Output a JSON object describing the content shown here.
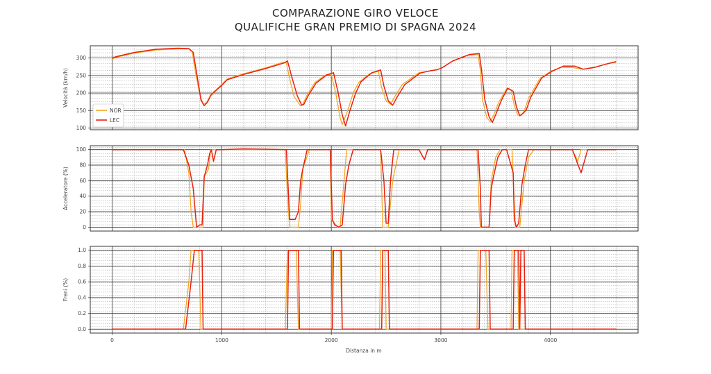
{
  "title_line1": "COMPARAZIONE GIRO VELOCE",
  "title_line2": "QUALIFICHE GRAN PREMIO DI SPAGNA 2024",
  "colors": {
    "NOR": "#f5a623",
    "LEC": "#e8200f"
  },
  "chart_data": [
    {
      "type": "line",
      "ylabel": "Velocità (km/h)",
      "xlabel": "",
      "xlim": [
        -200,
        4800
      ],
      "ylim": [
        95,
        335
      ],
      "yticks": [
        100,
        150,
        200,
        250,
        300
      ],
      "ytick_labels": [
        "100",
        "150",
        "200",
        "250",
        "300"
      ],
      "legend": {
        "location": "bottom-left",
        "entries": [
          "NOR",
          "LEC"
        ]
      },
      "series": [
        {
          "name": "NOR",
          "x": [
            0,
            50,
            200,
            400,
            600,
            700,
            730,
            760,
            800,
            830,
            860,
            900,
            950,
            1000,
            1050,
            1200,
            1400,
            1560,
            1590,
            1620,
            1660,
            1720,
            1740,
            1780,
            1850,
            1950,
            2000,
            2040,
            2080,
            2100,
            2150,
            2200,
            2250,
            2350,
            2430,
            2460,
            2500,
            2540,
            2580,
            2650,
            2800,
            2900,
            2950,
            3000,
            3100,
            3250,
            3340,
            3360,
            3380,
            3420,
            3450,
            3480,
            3530,
            3600,
            3640,
            3670,
            3700,
            3730,
            3760,
            3800,
            3900,
            4000,
            4100,
            4200,
            4300,
            4400,
            4500,
            4600
          ],
          "values": [
            298,
            303,
            314,
            323,
            326,
            326,
            318,
            260,
            195,
            168,
            172,
            195,
            210,
            225,
            240,
            255,
            272,
            288,
            286,
            240,
            190,
            163,
            168,
            195,
            230,
            252,
            252,
            200,
            130,
            110,
            150,
            200,
            230,
            255,
            262,
            215,
            178,
            168,
            190,
            225,
            258,
            263,
            266,
            270,
            290,
            308,
            310,
            265,
            180,
            130,
            118,
            135,
            175,
            212,
            208,
            165,
            138,
            135,
            148,
            185,
            240,
            262,
            274,
            273,
            268,
            274,
            282,
            288
          ]
        },
        {
          "name": "LEC",
          "x": [
            0,
            50,
            200,
            400,
            600,
            700,
            740,
            780,
            810,
            840,
            870,
            900,
            950,
            1000,
            1050,
            1200,
            1400,
            1570,
            1600,
            1640,
            1690,
            1730,
            1750,
            1790,
            1860,
            1960,
            2020,
            2060,
            2100,
            2130,
            2170,
            2220,
            2270,
            2370,
            2450,
            2480,
            2520,
            2560,
            2600,
            2670,
            2810,
            2910,
            2960,
            3010,
            3110,
            3260,
            3350,
            3370,
            3400,
            3440,
            3470,
            3500,
            3550,
            3610,
            3660,
            3690,
            3720,
            3750,
            3780,
            3820,
            3920,
            4020,
            4120,
            4220,
            4300,
            4400,
            4500,
            4600
          ],
          "values": [
            300,
            305,
            316,
            325,
            328,
            327,
            316,
            240,
            180,
            164,
            174,
            193,
            208,
            222,
            238,
            253,
            270,
            286,
            292,
            245,
            192,
            165,
            168,
            193,
            228,
            252,
            258,
            205,
            138,
            106,
            150,
            198,
            232,
            258,
            266,
            220,
            178,
            165,
            188,
            224,
            257,
            264,
            266,
            272,
            292,
            310,
            313,
            270,
            182,
            132,
            116,
            138,
            178,
            214,
            205,
            160,
            135,
            142,
            152,
            188,
            243,
            263,
            277,
            277,
            268,
            273,
            282,
            290
          ]
        }
      ]
    },
    {
      "type": "line",
      "ylabel": "Acceleratore (%)",
      "xlabel": "",
      "xlim": [
        -200,
        4800
      ],
      "ylim": [
        -5,
        105
      ],
      "yticks": [
        0,
        20,
        40,
        60,
        80,
        100
      ],
      "ytick_labels": [
        "0",
        "20",
        "40",
        "60",
        "80",
        "100"
      ],
      "series": [
        {
          "name": "NOR",
          "x": [
            0,
            660,
            700,
            720,
            740,
            800,
            830,
            840,
            880,
            900,
            950,
            1000,
            1580,
            1600,
            1620,
            1700,
            1720,
            1740,
            1800,
            1950,
            1990,
            2000,
            2060,
            2080,
            2140,
            2400,
            2450,
            2470,
            2520,
            2560,
            2620,
            2800,
            2850,
            2900,
            3330,
            3350,
            3360,
            3440,
            3460,
            3500,
            3540,
            3600,
            3650,
            3670,
            3680,
            3720,
            3760,
            3800,
            3850,
            4200,
            4250,
            4280,
            4600
          ],
          "values": [
            100,
            100,
            70,
            20,
            0,
            0,
            0,
            65,
            75,
            100,
            100,
            100,
            100,
            40,
            0,
            0,
            30,
            75,
            100,
            100,
            100,
            10,
            0,
            0,
            100,
            100,
            100,
            0,
            0,
            60,
            100,
            100,
            100,
            100,
            100,
            20,
            0,
            0,
            60,
            90,
            100,
            100,
            100,
            30,
            0,
            0,
            60,
            90,
            100,
            100,
            85,
            100,
            100
          ]
        },
        {
          "name": "LEC",
          "x": [
            0,
            650,
            700,
            740,
            770,
            800,
            820,
            840,
            870,
            890,
            905,
            925,
            950,
            1000,
            1200,
            1590,
            1600,
            1620,
            1670,
            1700,
            1720,
            1740,
            1780,
            1990,
            2010,
            2030,
            2070,
            2100,
            2130,
            2160,
            2200,
            2450,
            2480,
            2500,
            2520,
            2540,
            2570,
            2610,
            2800,
            2850,
            2880,
            2950,
            3340,
            3360,
            3370,
            3440,
            3460,
            3480,
            3520,
            3560,
            3600,
            3660,
            3670,
            3690,
            3710,
            3740,
            3770,
            3800,
            3850,
            4200,
            4240,
            4280,
            4320,
            4340,
            4600
          ],
          "values": [
            100,
            100,
            80,
            50,
            0,
            3,
            3,
            65,
            80,
            95,
            100,
            85,
            100,
            100,
            101,
            100,
            70,
            10,
            10,
            20,
            60,
            75,
            100,
            100,
            10,
            3,
            0,
            3,
            55,
            80,
            100,
            100,
            60,
            5,
            5,
            60,
            100,
            100,
            100,
            87,
            100,
            100,
            100,
            50,
            0,
            0,
            50,
            65,
            90,
            100,
            100,
            70,
            10,
            0,
            5,
            55,
            80,
            100,
            100,
            100,
            85,
            70,
            90,
            100,
            100
          ]
        }
      ]
    },
    {
      "type": "line",
      "ylabel": "Freni (%)",
      "xlabel": "Distanza in m",
      "xlim": [
        -200,
        4800
      ],
      "ylim": [
        -0.05,
        1.05
      ],
      "yticks": [
        0.0,
        0.2,
        0.4,
        0.6,
        0.8,
        1.0
      ],
      "ytick_labels": [
        "0.0",
        "0.2",
        "0.4",
        "0.6",
        "0.8",
        "1.0"
      ],
      "xticks": [
        0,
        1000,
        2000,
        3000,
        4000
      ],
      "xtick_labels": [
        "0",
        "1000",
        "2000",
        "3000",
        "4000"
      ],
      "series": [
        {
          "name": "NOR",
          "x": [
            0,
            650,
            700,
            720,
            760,
            790,
            810,
            1580,
            1600,
            1620,
            1680,
            1700,
            2000,
            2010,
            2080,
            2100,
            2440,
            2450,
            2490,
            2500,
            3330,
            3340,
            3410,
            3430,
            3640,
            3650,
            3700,
            3710,
            4600
          ],
          "values": [
            0,
            0,
            0.6,
            1,
            1,
            1,
            0,
            0,
            1,
            1,
            1,
            0,
            0,
            1,
            1,
            0,
            0,
            1,
            1,
            0,
            0,
            1,
            1,
            0,
            0,
            1,
            1,
            0,
            0
          ]
        },
        {
          "name": "LEC",
          "x": [
            0,
            670,
            720,
            750,
            800,
            820,
            830,
            1600,
            1610,
            1700,
            1710,
            2010,
            2020,
            2090,
            2100,
            2460,
            2470,
            2520,
            2530,
            3350,
            3360,
            3440,
            3450,
            3660,
            3670,
            3710,
            3720,
            3730,
            3740,
            3760,
            3770,
            4600
          ],
          "values": [
            0,
            0,
            0.6,
            1,
            1,
            1,
            0,
            0,
            1,
            1,
            0,
            0,
            1,
            1,
            0,
            0,
            1,
            1,
            0,
            0,
            1,
            1,
            0,
            0,
            1,
            1,
            0,
            1,
            1,
            1,
            0,
            0
          ]
        }
      ]
    }
  ]
}
